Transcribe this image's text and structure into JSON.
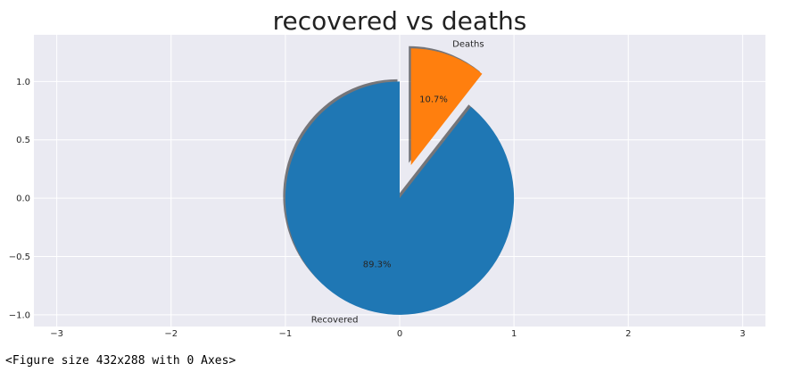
{
  "chart_data": {
    "type": "pie",
    "title": "recovered vs deaths",
    "labels": [
      "Recovered",
      "Deaths"
    ],
    "percentages": [
      89.3,
      10.7
    ],
    "pct_labels": [
      "89.3%",
      "10.7%"
    ],
    "explode": [
      0,
      0.3
    ],
    "shadow": true,
    "startangle": 90,
    "colors": [
      "#1f77b4",
      "#ff7f0e"
    ],
    "xlim": [
      -3.2,
      3.2
    ],
    "ylim": [
      -1.1,
      1.4
    ],
    "xticks": [
      -3,
      -2,
      -1,
      0,
      1,
      2,
      3
    ],
    "yticks": [
      -1.0,
      -0.5,
      0.0,
      0.5,
      1.0
    ],
    "xtick_labels": [
      "−3",
      "−2",
      "−1",
      "0",
      "1",
      "2",
      "3"
    ],
    "ytick_labels": [
      "−1.0",
      "−0.5",
      "0.0",
      "0.5",
      "1.0"
    ],
    "grid": true,
    "background": "#eaeaf2"
  },
  "footer_text": "<Figure size 432x288 with 0 Axes>"
}
